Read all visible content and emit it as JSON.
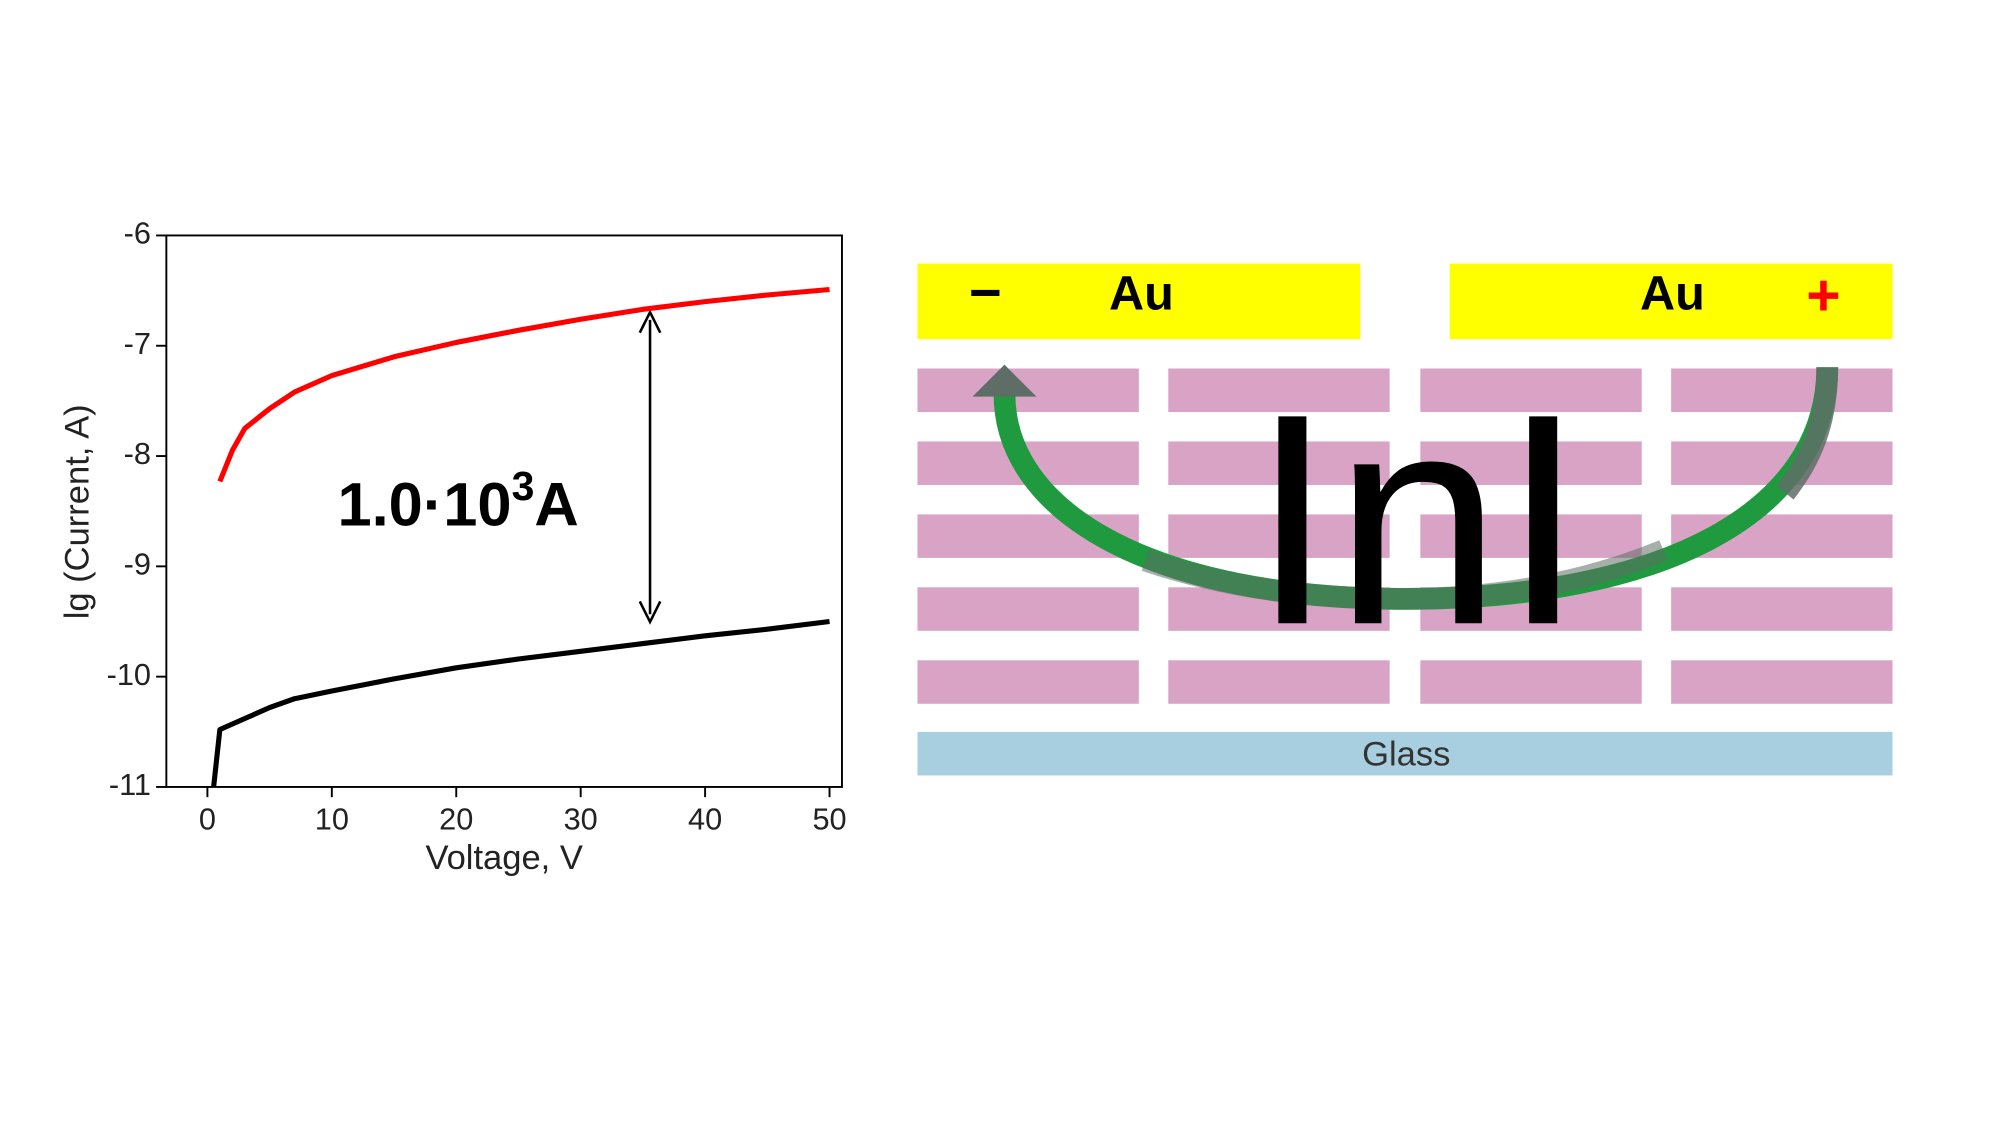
{
  "chart_data": {
    "type": "line",
    "xlabel": "Voltage, V",
    "ylabel": "lg (Current, A)",
    "xlim": [
      -3.3,
      51
    ],
    "xticks": [
      0,
      10,
      20,
      30,
      40,
      50
    ],
    "ylim": [
      -11,
      -6
    ],
    "yticks": [
      -11,
      -10,
      -9,
      -8,
      -7,
      -6
    ],
    "series": [
      {
        "color": "#ff0000",
        "x": [
          1,
          2,
          3,
          5,
          7,
          10,
          15,
          20,
          25,
          30,
          35,
          40,
          45,
          50
        ],
        "values": [
          -8.23,
          -7.95,
          -7.75,
          -7.57,
          -7.42,
          -7.27,
          -7.1,
          -6.97,
          -6.86,
          -6.76,
          -6.67,
          -6.6,
          -6.54,
          -6.49
        ]
      },
      {
        "color": "#000000",
        "x": [
          0.5,
          1,
          3,
          5,
          7,
          10,
          15,
          20,
          25,
          30,
          35,
          40,
          45,
          50
        ],
        "values": [
          -11,
          -10.48,
          -10.38,
          -10.28,
          -10.2,
          -10.13,
          -10.02,
          -9.92,
          -9.84,
          -9.77,
          -9.7,
          -9.63,
          -9.57,
          -9.5
        ]
      }
    ],
    "annotation": {
      "base": "1.0·10",
      "exponent": "3",
      "unit": "A"
    }
  },
  "diagram": {
    "electrodes": [
      {
        "sign": "−",
        "label": "Au"
      },
      {
        "label": "Au",
        "sign": "+"
      }
    ],
    "layer_label": "InI",
    "substrate": "Glass"
  }
}
